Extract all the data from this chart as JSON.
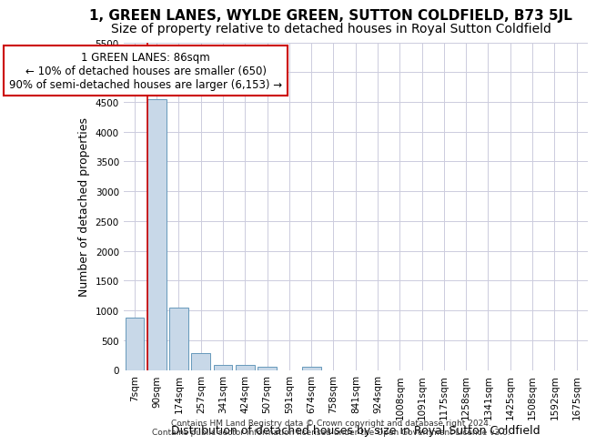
{
  "title": "1, GREEN LANES, WYLDE GREEN, SUTTON COLDFIELD, B73 5JL",
  "subtitle": "Size of property relative to detached houses in Royal Sutton Coldfield",
  "xlabel": "Distribution of detached houses by size in Royal Sutton Coldfield",
  "ylabel": "Number of detached properties",
  "footer_line1": "Contains HM Land Registry data © Crown copyright and database right 2024.",
  "footer_line2": "Contains public sector information licensed under the Open Government Licence v3.0.",
  "bar_labels": [
    "7sqm",
    "90sqm",
    "174sqm",
    "257sqm",
    "341sqm",
    "424sqm",
    "507sqm",
    "591sqm",
    "674sqm",
    "758sqm",
    "841sqm",
    "924sqm",
    "1008sqm",
    "1091sqm",
    "1175sqm",
    "1258sqm",
    "1341sqm",
    "1425sqm",
    "1508sqm",
    "1592sqm",
    "1675sqm"
  ],
  "bar_values": [
    880,
    4540,
    1050,
    280,
    90,
    90,
    60,
    0,
    55,
    0,
    0,
    0,
    0,
    0,
    0,
    0,
    0,
    0,
    0,
    0,
    0
  ],
  "bar_color": "#c8d8e8",
  "bar_edgecolor": "#6699bb",
  "vline_x_index": 1,
  "vline_color": "#cc0000",
  "annotation_line1": "1 GREEN LANES: 86sqm",
  "annotation_line2": "← 10% of detached houses are smaller (650)",
  "annotation_line3": "90% of semi-detached houses are larger (6,153) →",
  "annotation_box_color": "white",
  "annotation_box_edgecolor": "#cc0000",
  "ylim": [
    0,
    5500
  ],
  "yticks": [
    0,
    500,
    1000,
    1500,
    2000,
    2500,
    3000,
    3500,
    4000,
    4500,
    5000,
    5500
  ],
  "grid_color": "#ccccdd",
  "title_fontsize": 11,
  "subtitle_fontsize": 10,
  "xlabel_fontsize": 9,
  "ylabel_fontsize": 9,
  "tick_fontsize": 7.5,
  "annotation_fontsize": 8.5,
  "footer_fontsize": 6.5
}
